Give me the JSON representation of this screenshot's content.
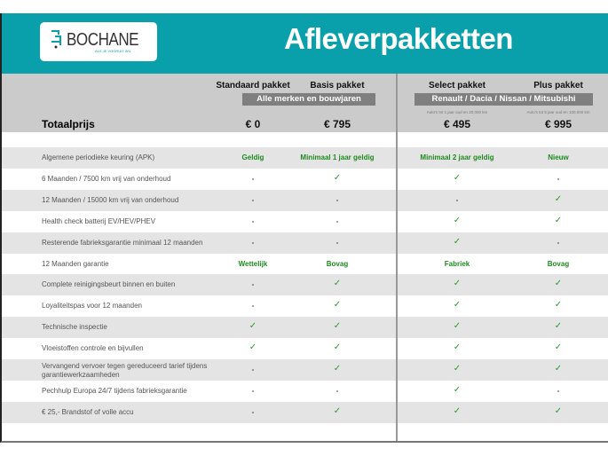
{
  "header": {
    "title": "Afleverpakketten",
    "logo": {
      "name": "BOCHANE",
      "tagline": "ALS JE VOORUIT WIL"
    }
  },
  "colors": {
    "teal": "#0aa0ab",
    "header_grey": "#cbcbcb",
    "band_grey": "#7f7f7f",
    "green": "#1e8a1e"
  },
  "packages": [
    {
      "name": "Standaard pakket",
      "price": "€ 0"
    },
    {
      "name": "Basis pakket",
      "price": "€ 795"
    },
    {
      "name": "Select pakket",
      "price": "€ 495",
      "note": "Auto's tot 1 jaar oud en 20.000 km"
    },
    {
      "name": "Plus pakket",
      "price": "€ 995",
      "note": "Auto's tot 5 jaar oud en 100.000 km"
    }
  ],
  "groups": {
    "left": "Alle merken en bouwjaren",
    "right": "Renault / Dacia / Nissan / Mitsubishi"
  },
  "total_label": "Totaalprijs",
  "rows": [
    {
      "label": "Algemene periodieke keuring (APK)",
      "values": [
        "Geldig",
        "Minimaal 1 jaar geldig",
        "Minimaal 2 jaar geldig",
        "Nieuw"
      ]
    },
    {
      "label": "6 Maanden / 7500 km vrij van onderhoud",
      "values": [
        "-",
        "✓",
        "✓",
        "-"
      ]
    },
    {
      "label": "12 Maanden / 15000 km vrij van onderhoud",
      "values": [
        "-",
        "-",
        "-",
        "✓"
      ]
    },
    {
      "label": "Health check batterij EV/HEV/PHEV",
      "values": [
        "-",
        "-",
        "✓",
        "✓"
      ]
    },
    {
      "label": "Resterende fabrieksgarantie minimaal 12 maanden",
      "values": [
        "-",
        "-",
        "✓",
        "-"
      ]
    },
    {
      "label": "12 Maanden  garantie",
      "values": [
        "Wettelijk",
        "Bovag",
        "Fabriek",
        "Bovag"
      ]
    },
    {
      "label": "Complete reinigingsbeurt binnen en buiten",
      "values": [
        "-",
        "✓",
        "✓",
        "✓"
      ]
    },
    {
      "label": "Loyaliteitspas voor 12 maanden",
      "values": [
        "-",
        "✓",
        "✓",
        "✓"
      ]
    },
    {
      "label": "Technische inspectie",
      "values": [
        "✓",
        "✓",
        "✓",
        "✓"
      ]
    },
    {
      "label": "Vloeistoffen controle en bijvullen",
      "values": [
        "✓",
        "✓",
        "✓",
        "✓"
      ]
    },
    {
      "label": "Vervangend vervoer tegen gereduceerd tarief tijdens garantiewerkzaamheden",
      "values": [
        "-",
        "✓",
        "✓",
        "✓"
      ]
    },
    {
      "label": "Pechhulp Europa 24/7 tijdens fabrieksgarantie",
      "values": [
        "-",
        "-",
        "✓",
        "-"
      ]
    },
    {
      "label": "€ 25,- Brandstof of  volle accu",
      "values": [
        "-",
        "✓",
        "✓",
        "✓"
      ]
    }
  ]
}
